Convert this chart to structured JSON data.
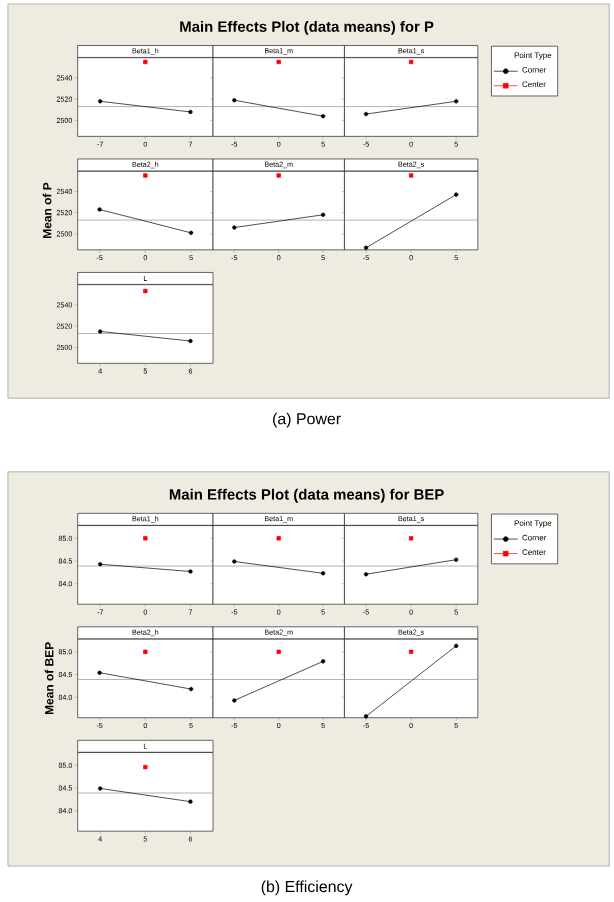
{
  "chart_data": [
    {
      "type": "line",
      "title": "Beta1_h",
      "annotations": [
        "Main Effects Plot (data means) for P",
        "(a) Power"
      ],
      "xlim": [
        -10.5,
        10.5
      ],
      "xticks": [
        -7,
        0,
        7
      ],
      "ylim": [
        2485,
        2559
      ],
      "yticks": [
        2500,
        2520,
        2540
      ],
      "series": [
        {
          "x": [
            -7,
            7
          ],
          "values": [
            2518,
            2508
          ],
          "color": "#000000",
          "marker": "circle"
        },
        {
          "type": "scatter",
          "x": [
            0
          ],
          "values": [
            2555
          ],
          "color": "#ff0000",
          "marker": "square"
        }
      ],
      "ref_lines": [
        {
          "axis": "y",
          "value": 2513,
          "color": "#7f7f7f"
        }
      ]
    },
    {
      "type": "line",
      "title": "Beta1_m",
      "tick_labels": "x",
      "xlim": [
        -7.4,
        7.4
      ],
      "xticks": [
        -5,
        0,
        5
      ],
      "ylim": [
        2485,
        2559
      ],
      "yticks": [
        {
          "value": 2500,
          "label": null
        },
        {
          "value": 2520,
          "label": null
        },
        {
          "value": 2540,
          "label": null
        }
      ],
      "series": [
        {
          "x": [
            -5,
            5
          ],
          "values": [
            2519,
            2504
          ],
          "color": "#000000",
          "marker": "circle"
        },
        {
          "type": "scatter",
          "x": [
            0
          ],
          "values": [
            2555
          ],
          "color": "#ff0000",
          "marker": "square"
        }
      ],
      "ref_lines": [
        {
          "axis": "y",
          "value": 2513,
          "color": "#7f7f7f"
        }
      ]
    },
    {
      "type": "line",
      "title": "Beta1_s",
      "tick_labels": "x",
      "legend": "right",
      "legend_title": "Point Type",
      "xlim": [
        -7.4,
        7.4
      ],
      "xticks": [
        -5,
        0,
        5
      ],
      "ylim": [
        2485,
        2559
      ],
      "yticks": [
        {
          "value": 2500,
          "label": null
        },
        {
          "value": 2520,
          "label": null
        },
        {
          "value": 2540,
          "label": null
        }
      ],
      "series": [
        {
          "name": "Corner",
          "x": [
            -5,
            5
          ],
          "values": [
            2506,
            2518
          ],
          "color": "#000000",
          "marker": "circle"
        },
        {
          "name": "Center",
          "type": "scatter",
          "x": [
            0
          ],
          "values": [
            2555
          ],
          "color": "#ff0000",
          "marker": "square"
        }
      ],
      "ref_lines": [
        {
          "axis": "y",
          "value": 2513,
          "color": "#7f7f7f"
        }
      ]
    },
    {
      "type": "line",
      "title": "Beta2_h",
      "ylabel": "Mean of P",
      "xlim": [
        -7.4,
        7.4
      ],
      "xticks": [
        -5,
        0,
        5
      ],
      "ylim": [
        2485,
        2559
      ],
      "yticks": [
        2500,
        2520,
        2540
      ],
      "series": [
        {
          "x": [
            -5,
            5
          ],
          "values": [
            2523,
            2501
          ],
          "color": "#000000",
          "marker": "circle"
        },
        {
          "type": "scatter",
          "x": [
            0
          ],
          "values": [
            2555
          ],
          "color": "#ff0000",
          "marker": "square"
        }
      ],
      "ref_lines": [
        {
          "axis": "y",
          "value": 2513,
          "color": "#7f7f7f"
        }
      ]
    },
    {
      "type": "line",
      "title": "Beta2_m",
      "tick_labels": "x",
      "xlim": [
        -7.4,
        7.4
      ],
      "xticks": [
        -5,
        0,
        5
      ],
      "ylim": [
        2485,
        2559
      ],
      "yticks": [
        {
          "value": 2500,
          "label": null
        },
        {
          "value": 2520,
          "label": null
        },
        {
          "value": 2540,
          "label": null
        }
      ],
      "series": [
        {
          "x": [
            -5,
            5
          ],
          "values": [
            2506,
            2518
          ],
          "color": "#000000",
          "marker": "circle"
        },
        {
          "type": "scatter",
          "x": [
            0
          ],
          "values": [
            2555
          ],
          "color": "#ff0000",
          "marker": "square"
        }
      ],
      "ref_lines": [
        {
          "axis": "y",
          "value": 2513,
          "color": "#7f7f7f"
        }
      ]
    },
    {
      "type": "line",
      "title": "Beta2_s",
      "tick_labels": "x",
      "xlim": [
        -7.4,
        7.4
      ],
      "xticks": [
        -5,
        0,
        5
      ],
      "ylim": [
        2485,
        2559
      ],
      "yticks": [
        {
          "value": 2500,
          "label": null
        },
        {
          "value": 2520,
          "label": null
        },
        {
          "value": 2540,
          "label": null
        }
      ],
      "series": [
        {
          "x": [
            -5,
            5
          ],
          "values": [
            2487,
            2537
          ],
          "color": "#000000",
          "marker": "circle"
        },
        {
          "type": "scatter",
          "x": [
            0
          ],
          "values": [
            2555
          ],
          "color": "#ff0000",
          "marker": "square"
        }
      ],
      "ref_lines": [
        {
          "axis": "y",
          "value": 2513,
          "color": "#7f7f7f"
        }
      ]
    },
    {
      "type": "line",
      "title": "L",
      "xlim": [
        3.5,
        6.5
      ],
      "xticks": [
        4,
        5,
        6
      ],
      "ylim": [
        2485,
        2559
      ],
      "yticks": [
        2500,
        2520,
        2540
      ],
      "series": [
        {
          "x": [
            4,
            6
          ],
          "values": [
            2515,
            2506
          ],
          "color": "#000000",
          "marker": "circle"
        },
        {
          "type": "scatter",
          "x": [
            5
          ],
          "values": [
            2553
          ],
          "color": "#ff0000",
          "marker": "square"
        }
      ],
      "ref_lines": [
        {
          "axis": "y",
          "value": 2513,
          "color": "#7f7f7f"
        }
      ]
    },
    {
      "type": "line",
      "title": "Beta1_h",
      "annotations": [
        "Main Effects Plot (data means) for BEP",
        "(b) Efficiency"
      ],
      "xlim": [
        -10.5,
        10.5
      ],
      "xticks": [
        -7,
        0,
        7
      ],
      "ylim": [
        83.55,
        85.28
      ],
      "yticks": [
        {
          "value": 84,
          "label": "84.0"
        },
        {
          "value": 84.5,
          "label": "84.5"
        },
        {
          "value": 85,
          "label": "85.0"
        }
      ],
      "series": [
        {
          "x": [
            -7,
            7
          ],
          "values": [
            84.43,
            84.27
          ],
          "color": "#000000",
          "marker": "circle"
        },
        {
          "type": "scatter",
          "x": [
            0
          ],
          "values": [
            85.0
          ],
          "color": "#ff0000",
          "marker": "square"
        }
      ],
      "ref_lines": [
        {
          "axis": "y",
          "value": 84.39,
          "color": "#7f7f7f"
        }
      ]
    },
    {
      "type": "line",
      "title": "Beta1_m",
      "tick_labels": "x",
      "xlim": [
        -7.4,
        7.4
      ],
      "xticks": [
        -5,
        0,
        5
      ],
      "ylim": [
        83.55,
        85.28
      ],
      "yticks": [
        {
          "value": 84,
          "label": null
        },
        {
          "value": 84.5,
          "label": null
        },
        {
          "value": 85,
          "label": null
        }
      ],
      "series": [
        {
          "x": [
            -5,
            5
          ],
          "values": [
            84.49,
            84.23
          ],
          "color": "#000000",
          "marker": "circle"
        },
        {
          "type": "scatter",
          "x": [
            0
          ],
          "values": [
            85.0
          ],
          "color": "#ff0000",
          "marker": "square"
        }
      ],
      "ref_lines": [
        {
          "axis": "y",
          "value": 84.39,
          "color": "#7f7f7f"
        }
      ]
    },
    {
      "type": "line",
      "title": "Beta1_s",
      "tick_labels": "x",
      "legend": "right",
      "legend_title": "Point Type",
      "xlim": [
        -7.4,
        7.4
      ],
      "xticks": [
        -5,
        0,
        5
      ],
      "ylim": [
        83.55,
        85.28
      ],
      "yticks": [
        {
          "value": 84,
          "label": null
        },
        {
          "value": 84.5,
          "label": null
        },
        {
          "value": 85,
          "label": null
        }
      ],
      "series": [
        {
          "name": "Corner",
          "x": [
            -5,
            5
          ],
          "values": [
            84.21,
            84.53
          ],
          "color": "#000000",
          "marker": "circle"
        },
        {
          "name": "Center",
          "type": "scatter",
          "x": [
            0
          ],
          "values": [
            85.0
          ],
          "color": "#ff0000",
          "marker": "square"
        }
      ],
      "ref_lines": [
        {
          "axis": "y",
          "value": 84.39,
          "color": "#7f7f7f"
        }
      ]
    },
    {
      "type": "line",
      "title": "Beta2_h",
      "ylabel": "Mean of BEP",
      "xlim": [
        -7.4,
        7.4
      ],
      "xticks": [
        -5,
        0,
        5
      ],
      "ylim": [
        83.55,
        85.28
      ],
      "yticks": [
        {
          "value": 84,
          "label": "84.0"
        },
        {
          "value": 84.5,
          "label": "84.5"
        },
        {
          "value": 85,
          "label": "85.0"
        }
      ],
      "series": [
        {
          "x": [
            -5,
            5
          ],
          "values": [
            84.54,
            84.18
          ],
          "color": "#000000",
          "marker": "circle"
        },
        {
          "type": "scatter",
          "x": [
            0
          ],
          "values": [
            85.0
          ],
          "color": "#ff0000",
          "marker": "square"
        }
      ],
      "ref_lines": [
        {
          "axis": "y",
          "value": 84.39,
          "color": "#7f7f7f"
        }
      ]
    },
    {
      "type": "line",
      "title": "Beta2_m",
      "tick_labels": "x",
      "xlim": [
        -7.4,
        7.4
      ],
      "xticks": [
        -5,
        0,
        5
      ],
      "ylim": [
        83.55,
        85.28
      ],
      "yticks": [
        {
          "value": 84,
          "label": null
        },
        {
          "value": 84.5,
          "label": null
        },
        {
          "value": 85,
          "label": null
        }
      ],
      "series": [
        {
          "x": [
            -5,
            5
          ],
          "values": [
            83.93,
            84.79
          ],
          "color": "#000000",
          "marker": "circle"
        },
        {
          "type": "scatter",
          "x": [
            0
          ],
          "values": [
            85.0
          ],
          "color": "#ff0000",
          "marker": "square"
        }
      ],
      "ref_lines": [
        {
          "axis": "y",
          "value": 84.39,
          "color": "#7f7f7f"
        }
      ]
    },
    {
      "type": "line",
      "title": "Beta2_s",
      "tick_labels": "x",
      "xlim": [
        -7.4,
        7.4
      ],
      "xticks": [
        -5,
        0,
        5
      ],
      "ylim": [
        83.55,
        85.28
      ],
      "yticks": [
        {
          "value": 84,
          "label": null
        },
        {
          "value": 84.5,
          "label": null
        },
        {
          "value": 85,
          "label": null
        }
      ],
      "series": [
        {
          "x": [
            -5,
            5
          ],
          "values": [
            83.58,
            85.13
          ],
          "color": "#000000",
          "marker": "circle"
        },
        {
          "type": "scatter",
          "x": [
            0
          ],
          "values": [
            85.0
          ],
          "color": "#ff0000",
          "marker": "square"
        }
      ],
      "ref_lines": [
        {
          "axis": "y",
          "value": 84.39,
          "color": "#7f7f7f"
        }
      ]
    },
    {
      "type": "line",
      "title": "L",
      "xlim": [
        3.5,
        6.5
      ],
      "xticks": [
        4,
        5,
        6
      ],
      "ylim": [
        83.55,
        85.28
      ],
      "yticks": [
        {
          "value": 84,
          "label": "84.0"
        },
        {
          "value": 84.5,
          "label": "84.5"
        },
        {
          "value": 85,
          "label": "85.0"
        }
      ],
      "series": [
        {
          "x": [
            4,
            6
          ],
          "values": [
            84.49,
            84.2
          ],
          "color": "#000000",
          "marker": "circle"
        },
        {
          "type": "scatter",
          "x": [
            5
          ],
          "values": [
            84.96
          ],
          "color": "#ff0000",
          "marker": "square"
        }
      ],
      "ref_lines": [
        {
          "axis": "y",
          "value": 84.39,
          "color": "#7f7f7f"
        }
      ]
    }
  ]
}
